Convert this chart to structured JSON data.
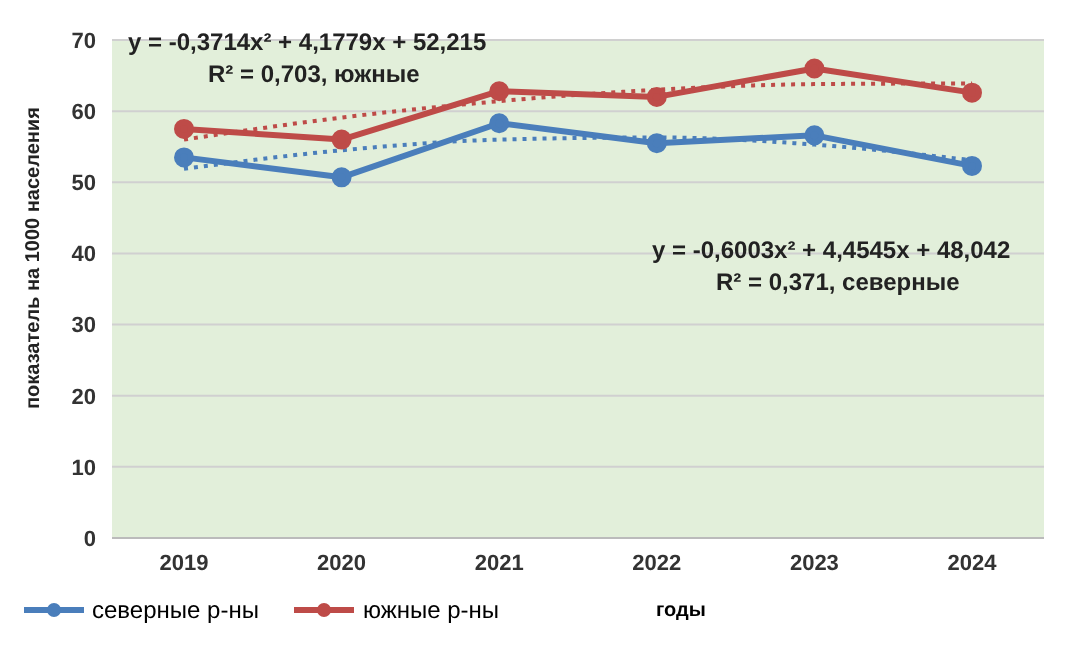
{
  "chart_data": {
    "type": "line",
    "xlabel": "годы",
    "ylabel": "показатель на 1000 населения",
    "categories": [
      "2019",
      "2020",
      "2021",
      "2022",
      "2023",
      "2024"
    ],
    "series": [
      {
        "name": "северные р-ны",
        "color": "#4a7ebb",
        "values": [
          53.5,
          50.7,
          58.3,
          55.5,
          56.6,
          52.3
        ],
        "marker": "circle",
        "line_style": "solid"
      },
      {
        "name": "южные р-ны",
        "color": "#be4b48",
        "values": [
          57.5,
          56.0,
          62.8,
          62.0,
          66.0,
          62.6
        ],
        "marker": "circle",
        "line_style": "solid"
      },
      {
        "color": "#4a7ebb",
        "values": [
          51.9,
          54.5,
          56.0,
          56.3,
          55.3,
          53.1
        ],
        "marker": "none",
        "line_style": "dotted"
      },
      {
        "color": "#be4b48",
        "values": [
          56.0,
          59.1,
          61.4,
          63.0,
          63.8,
          63.9
        ],
        "marker": "none",
        "line_style": "dotted"
      }
    ],
    "ylim": [
      0,
      70
    ],
    "yticks": [
      0,
      10,
      20,
      30,
      40,
      50,
      60,
      70
    ],
    "grid": "y",
    "legend": "bottom",
    "annotations": [
      "y = -0,3714x² + 4,1779x + 52,215",
      "R² = 0,703, южные",
      "y = -0,6003x² + 4,4545x + 48,042",
      "R² = 0,371, северные"
    ]
  }
}
